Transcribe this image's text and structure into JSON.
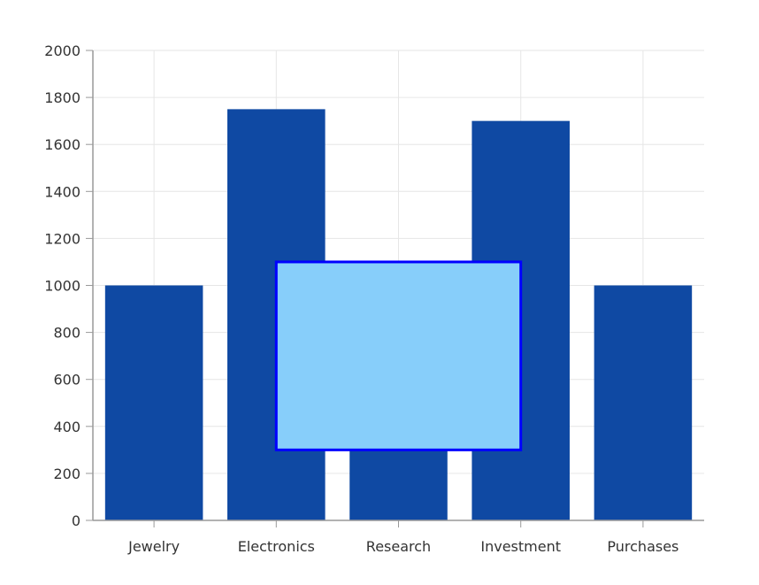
{
  "chart_data": {
    "type": "bar",
    "categories": [
      "Jewelry",
      "Electronics",
      "Research",
      "Investment",
      "Purchases"
    ],
    "values": [
      1000,
      1750,
      1100,
      1700,
      1000
    ],
    "title": "",
    "xlabel": "",
    "ylabel": "",
    "ylim": [
      0,
      2000
    ],
    "yticks": [
      "0",
      "200",
      "400",
      "600",
      "800",
      "1000",
      "1200",
      "1400",
      "1600",
      "1800",
      "2000"
    ],
    "grid": true,
    "bar_color": "#0F49A3",
    "overlay_rect": {
      "category_from": "Electronics",
      "category_to": "Investment",
      "y_from": 300,
      "y_to": 1100,
      "fill": "#87CEFA",
      "stroke": "#0000FF"
    }
  }
}
